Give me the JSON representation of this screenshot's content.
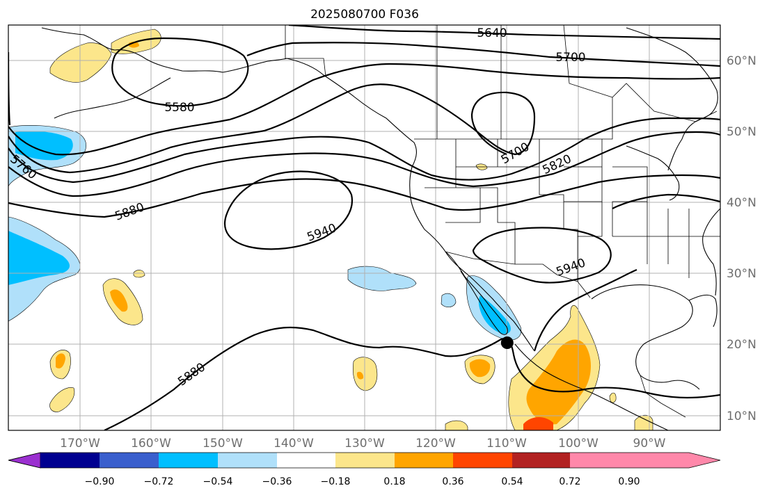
{
  "title": "2025080700 F036",
  "map": {
    "lon_labels": [
      "170°W",
      "160°W",
      "150°W",
      "140°W",
      "130°W",
      "120°W",
      "110°W",
      "100°W",
      "90°W"
    ],
    "lat_labels": [
      "60°N",
      "50°N",
      "40°N",
      "30°N",
      "20°N",
      "10°N"
    ],
    "contour_labels": [
      "5640",
      "5700",
      "5580",
      "5760",
      "5700",
      "5820",
      "5880",
      "5940",
      "5940",
      "5880"
    ],
    "marker": {
      "lon": -110.0,
      "lat": 20.2
    }
  },
  "colorbar": {
    "colors": [
      "#9b30d0",
      "#000090",
      "#3a5fcd",
      "#00bfff",
      "#b0e0fa",
      "#ffffff",
      "#fce68b",
      "#ffa500",
      "#ff4500",
      "#b22222",
      "#ff88aa"
    ],
    "labels": [
      "−0.90",
      "−0.72",
      "−0.54",
      "−0.36",
      "−0.18",
      "0.18",
      "0.36",
      "0.54",
      "0.72",
      "0.90"
    ]
  }
}
